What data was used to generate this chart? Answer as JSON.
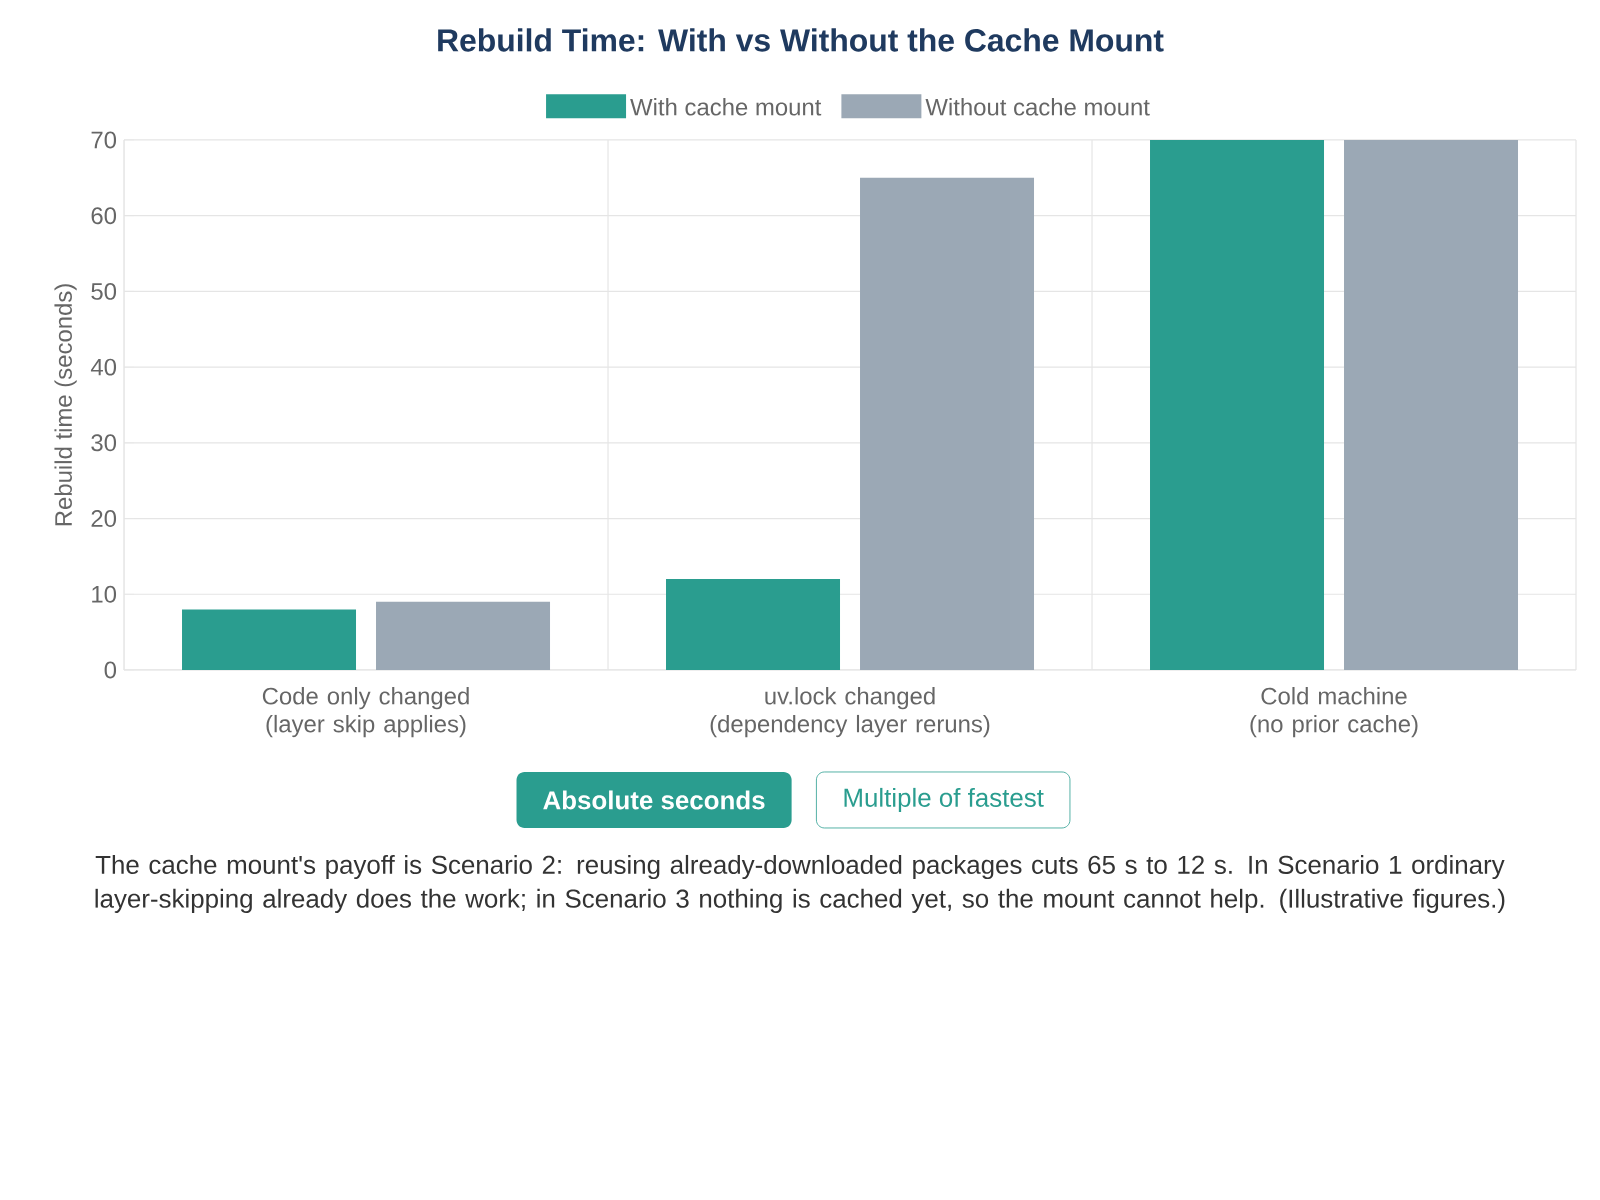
{
  "chart_data": {
    "type": "bar",
    "title": "Rebuild Time: With vs Without the Cache Mount",
    "categories": [
      "Code only changed\n(layer skip applies)",
      "uv.lock changed\n(dependency layer reruns)",
      "Cold machine\n(no prior cache)"
    ],
    "series": [
      {
        "name": "With cache mount",
        "color": "#2a9d8f",
        "values": [
          8,
          12,
          70
        ]
      },
      {
        "name": "Without cache mount",
        "color": "#9ba8b5",
        "values": [
          9,
          65,
          70
        ]
      }
    ],
    "ylabel": "Rebuild time (seconds)",
    "ylim": [
      0,
      70
    ],
    "yticks": [
      0,
      10,
      20,
      30,
      40,
      50,
      60,
      70
    ],
    "grid": true,
    "legend": "top",
    "annotations": [
      "Absolute seconds",
      "Multiple of fastest",
      "The cache mount's payoff is Scenario 2: reusing already-downloaded packages cuts 65 s to 12 s. In Scenario 1 ordinary layer-skipping already does the work; in Scenario 3 nothing is cached yet, so the mount cannot help. (Illustrative figures.)"
    ]
  }
}
